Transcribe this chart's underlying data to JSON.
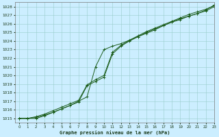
{
  "title": "Graphe pression niveau de la mer (hPa)",
  "bg_color": "#cceeff",
  "grid_color": "#99cccc",
  "line_color": "#1a5c1a",
  "xlim": [
    -0.5,
    23
  ],
  "ylim": [
    1014.5,
    1028.5
  ],
  "yticks": [
    1015,
    1016,
    1017,
    1018,
    1019,
    1020,
    1021,
    1022,
    1023,
    1024,
    1025,
    1026,
    1027,
    1028
  ],
  "xticks": [
    0,
    1,
    2,
    3,
    4,
    5,
    6,
    7,
    8,
    9,
    10,
    11,
    12,
    13,
    14,
    15,
    16,
    17,
    18,
    19,
    20,
    21,
    22,
    23
  ],
  "series1": [
    1015.0,
    1015.0,
    1015.0,
    1015.3,
    1015.7,
    1016.1,
    1016.5,
    1017.0,
    1017.5,
    1021.0,
    1023.0,
    1023.4,
    1023.7,
    1024.1,
    1024.5,
    1024.9,
    1025.3,
    1025.8,
    1026.2,
    1026.6,
    1026.9,
    1027.2,
    1027.6,
    1028.2
  ],
  "series2": [
    1015.0,
    1015.0,
    1015.1,
    1015.4,
    1015.7,
    1016.1,
    1016.5,
    1016.9,
    1018.8,
    1019.3,
    1019.8,
    1022.5,
    1023.4,
    1024.0,
    1024.5,
    1025.0,
    1025.4,
    1025.8,
    1026.2,
    1026.5,
    1026.9,
    1027.2,
    1027.5,
    1028.0
  ],
  "series3": [
    1015.0,
    1015.0,
    1015.2,
    1015.5,
    1015.9,
    1016.3,
    1016.7,
    1017.1,
    1018.9,
    1019.5,
    1020.0,
    1022.7,
    1023.5,
    1024.1,
    1024.6,
    1025.1,
    1025.5,
    1025.9,
    1026.3,
    1026.7,
    1027.1,
    1027.4,
    1027.7,
    1028.1
  ]
}
